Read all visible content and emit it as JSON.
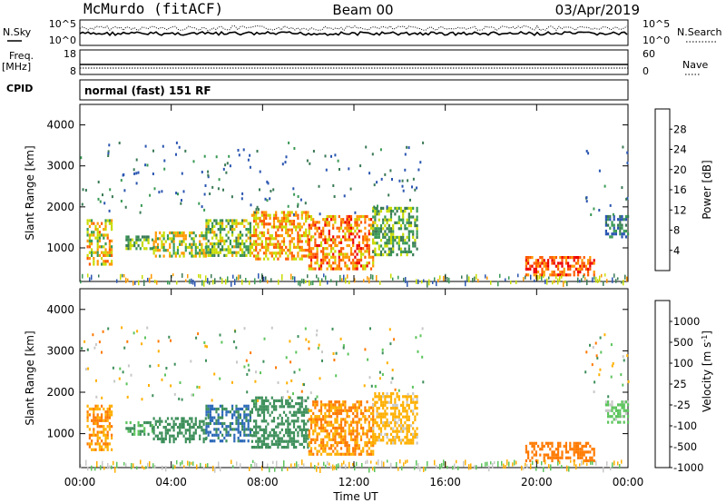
{
  "header": {
    "station": "McMurdo (fitACF)",
    "beam": "Beam 00",
    "date": "03/Apr/2019"
  },
  "status_panel": {
    "nsky_label": "N.Sky",
    "nsearch_label": "N.Search",
    "nsky_ticks": [
      "10^5",
      "10^0"
    ],
    "nsearch_ticks": [
      "10^5",
      "10^0"
    ],
    "freq_label": "Freq.",
    "freq_unit": "[MHz]",
    "freq_ticks": [
      "18",
      "8"
    ],
    "nave_label": "Nave",
    "nave_ticks": [
      "60",
      "0"
    ],
    "cpid_label": "CPID",
    "cpid_value": "normal (fast) 151 RF"
  },
  "chart_data": [
    {
      "type": "heatmap",
      "name": "power",
      "ylabel": "Slant Range [km]",
      "ylim": [
        180,
        4500
      ],
      "yticks": [
        "4000",
        "3000",
        "2000",
        "1000"
      ],
      "xlabel": "Time UT",
      "xlim": [
        "00:00",
        "24:00"
      ],
      "colorbar": {
        "label": "Power [dB]",
        "ticks": [
          "28",
          "24",
          "20",
          "16",
          "12",
          "8",
          "4"
        ],
        "colors": [
          "#0000ff",
          "#2a55b0",
          "#3a7a55",
          "#3a9a55",
          "#c8dc00",
          "#ff9900",
          "#ff5a00",
          "#ee0000"
        ]
      },
      "regions": [
        {
          "t0": 0.3,
          "t1": 1.4,
          "r0": 600,
          "r1": 1700,
          "level": 20
        },
        {
          "t0": 2.0,
          "t1": 3.2,
          "r0": 1000,
          "r1": 1300,
          "level": 14
        },
        {
          "t0": 3.2,
          "t1": 5.5,
          "r0": 800,
          "r1": 1400,
          "level": 18
        },
        {
          "t0": 5.5,
          "t1": 7.5,
          "r0": 800,
          "r1": 1700,
          "level": 16
        },
        {
          "t0": 7.5,
          "t1": 10.0,
          "r0": 700,
          "r1": 1900,
          "level": 22
        },
        {
          "t0": 10.0,
          "t1": 12.8,
          "r0": 500,
          "r1": 1800,
          "level": 24
        },
        {
          "t0": 12.8,
          "t1": 14.8,
          "r0": 800,
          "r1": 2000,
          "level": 14
        },
        {
          "t0": 19.5,
          "t1": 22.5,
          "r0": 350,
          "r1": 800,
          "level": 26
        },
        {
          "t0": 23.0,
          "t1": 24.0,
          "r0": 1300,
          "r1": 1800,
          "level": 10
        }
      ]
    },
    {
      "type": "heatmap",
      "name": "velocity",
      "ylabel": "Slant Range [km]",
      "ylim": [
        180,
        4500
      ],
      "yticks": [
        "4000",
        "3000",
        "2000",
        "1000"
      ],
      "xlabel": "Time UT",
      "xlim": [
        "00:00",
        "24:00"
      ],
      "colorbar": {
        "label": "Velocity [m s",
        "label_sup": "-1",
        "label_end": "]",
        "ticks": [
          "1000",
          "500",
          "100",
          "25",
          "-25",
          "-100",
          "-500",
          "-1000"
        ],
        "colors": [
          "#1f3fc8",
          "#2e6ab8",
          "#3d8f5a",
          "#5cc45c",
          "#c8c8c8",
          "#ffb000",
          "#ff7a00",
          "#ee0000"
        ]
      },
      "regions": [
        {
          "t0": 0.3,
          "t1": 1.4,
          "r0": 600,
          "r1": 1700,
          "level": -100
        },
        {
          "t0": 2.0,
          "t1": 3.2,
          "r0": 1000,
          "r1": 1300,
          "level": 100
        },
        {
          "t0": 3.2,
          "t1": 5.5,
          "r0": 800,
          "r1": 1400,
          "level": 300
        },
        {
          "t0": 5.5,
          "t1": 7.5,
          "r0": 800,
          "r1": 1700,
          "level": 600
        },
        {
          "t0": 7.5,
          "t1": 10.0,
          "r0": 700,
          "r1": 1900,
          "level": 200
        },
        {
          "t0": 10.0,
          "t1": 12.8,
          "r0": 500,
          "r1": 1800,
          "level": -100
        },
        {
          "t0": 12.8,
          "t1": 14.8,
          "r0": 800,
          "r1": 2000,
          "level": -50
        },
        {
          "t0": 19.5,
          "t1": 22.5,
          "r0": 350,
          "r1": 800,
          "level": -300
        },
        {
          "t0": 23.0,
          "t1": 24.0,
          "r0": 1300,
          "r1": 1800,
          "level": 50
        }
      ]
    }
  ],
  "time_axis": {
    "ticks": [
      "00:00",
      "04:00",
      "08:00",
      "12:00",
      "16:00",
      "20:00",
      "00:00"
    ],
    "label": "Time UT"
  }
}
